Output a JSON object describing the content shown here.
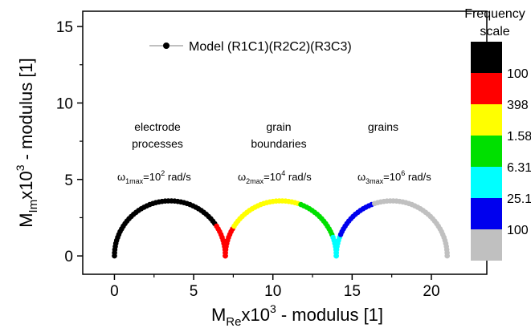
{
  "chart_data": {
    "type": "scatter",
    "xlabel": {
      "base": "M",
      "sub": "Re",
      "mid": "x10",
      "sup": "3",
      "tail": " -  modulus  [1]"
    },
    "ylabel": {
      "base": "M",
      "sub": "Im",
      "mid": "x10",
      "sup": "3",
      "tail": " -  modulus  [1]"
    },
    "xlim": [
      -2,
      23.5
    ],
    "ylim": [
      -1.2,
      16
    ],
    "xticks": [
      0,
      5,
      10,
      15,
      20
    ],
    "yticks": [
      0,
      5,
      10,
      15
    ],
    "xtick_labels": [
      "0",
      "5",
      "10",
      "15",
      "20"
    ],
    "ytick_labels": [
      "0",
      "5",
      "10",
      "15"
    ],
    "legend": {
      "label": "Model (R1C1)(R2C2)(R3C3)",
      "position": "top-center"
    },
    "annotations": [
      {
        "lines": [
          "electrode",
          "processes"
        ],
        "omega": {
          "sym": "ω",
          "sub": "1max",
          "eq": "=10",
          "sup": "2",
          "unit": " rad/s"
        }
      },
      {
        "lines": [
          "grain",
          "boundaries"
        ],
        "omega": {
          "sym": "ω",
          "sub": "2max",
          "eq": "=10",
          "sup": "4",
          "unit": " rad/s"
        }
      },
      {
        "lines": [
          "grains"
        ],
        "omega": {
          "sym": "ω",
          "sub": "3max",
          "eq": "=10",
          "sup": "6",
          "unit": " rad/s"
        }
      }
    ],
    "semicircles": [
      {
        "x_start": 0,
        "x_end": 7,
        "peak": 3.6
      },
      {
        "x_start": 7,
        "x_end": 14,
        "peak": 3.6
      },
      {
        "x_start": 14,
        "x_end": 21,
        "peak": 3.6
      }
    ],
    "frequency_scale": {
      "title": [
        "Frequency",
        "scale"
      ],
      "bands": [
        {
          "color": "#000000",
          "label": ""
        },
        {
          "color": "#ff0000",
          "label": "100"
        },
        {
          "color": "#ffff00",
          "label": "398"
        },
        {
          "color": "#00e000",
          "label": "1.58"
        },
        {
          "color": "#00ffff",
          "label": "6.31"
        },
        {
          "color": "#0000ee",
          "label": "25.1"
        },
        {
          "color": "#c0c0c0",
          "label": "100"
        }
      ]
    }
  }
}
